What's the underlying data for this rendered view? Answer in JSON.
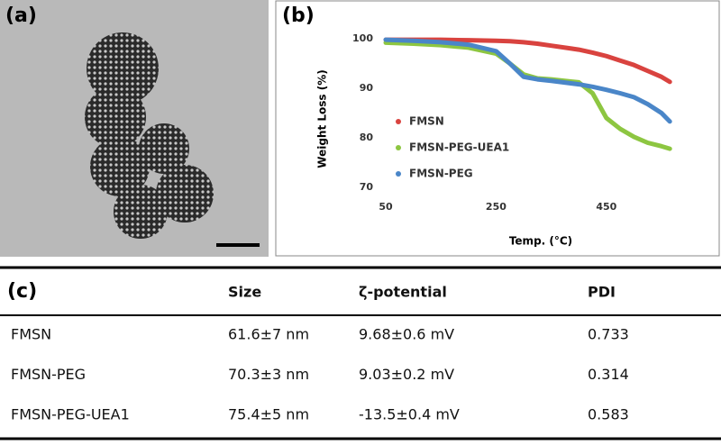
{
  "panels": {
    "a": "(a)",
    "b": "(b)",
    "c": "(c)"
  },
  "chart_data": {
    "type": "line",
    "x_label": "Temp. (°C)",
    "y_label": "Weight Loss (%)",
    "xlim": [
      50,
      630
    ],
    "ylim": [
      70,
      106
    ],
    "xticks": [
      50,
      250,
      450
    ],
    "yticks": [
      70,
      80,
      90,
      100
    ],
    "legend": "left",
    "x": [
      50,
      100,
      150,
      200,
      250,
      275,
      300,
      325,
      350,
      400,
      425,
      450,
      475,
      500,
      525,
      550,
      565
    ],
    "series": [
      {
        "name": "FMSN",
        "color": "#d9433f",
        "values": [
          99.8,
          99.8,
          99.8,
          99.7,
          99.6,
          99.5,
          99.3,
          99,
          98.6,
          97.8,
          97.2,
          96.5,
          95.6,
          94.7,
          93.5,
          92.3,
          91.3
        ]
      },
      {
        "name": "FMSN-PEG-UEA1",
        "color": "#8dc641",
        "values": [
          99.2,
          99,
          98.7,
          98.2,
          97,
          95,
          92.8,
          92,
          91.8,
          91.2,
          89,
          84,
          81.8,
          80.2,
          79,
          78.3,
          77.8
        ]
      },
      {
        "name": "FMSN-PEG",
        "color": "#4a86c8",
        "values": [
          99.8,
          99.6,
          99.3,
          98.8,
          97.5,
          95,
          92.3,
          91.8,
          91.5,
          90.8,
          90.3,
          89.7,
          89,
          88.2,
          86.8,
          85,
          83.3
        ]
      }
    ]
  },
  "table": {
    "header": [
      "Size",
      "ζ-potential",
      "PDI"
    ],
    "rows": [
      [
        "FMSN",
        "61.6±7 nm",
        "9.68±0.6 mV",
        "0.733"
      ],
      [
        "FMSN-PEG",
        "70.3±3 nm",
        "9.03±0.2 mV",
        "0.314"
      ],
      [
        "FMSN-PEG-UEA1",
        "75.4±5 nm",
        "-13.5±0.4 mV",
        "0.583"
      ]
    ]
  }
}
